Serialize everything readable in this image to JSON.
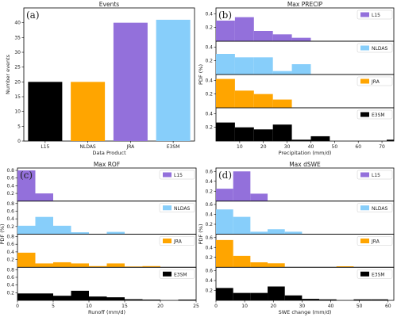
{
  "figure": {
    "name": "events-and-max-distributions"
  },
  "chart_data": [
    {
      "panel": "a",
      "type": "bar",
      "title": "Events",
      "xlabel": "Data Product",
      "ylabel": "Number events",
      "categories": [
        "L15",
        "NLDAS",
        "JRA",
        "E3SM"
      ],
      "values": [
        20,
        20,
        40,
        41
      ],
      "colors": [
        "#000000",
        "#ffa500",
        "#9370db",
        "#87cefa"
      ],
      "ylim": [
        0,
        45
      ],
      "yticks": [
        0,
        5,
        10,
        15,
        20,
        25,
        30,
        35,
        40
      ],
      "grid": false
    },
    {
      "panel": "b",
      "type": "bar",
      "title": "Max PRECIP",
      "xlabel": "Precipitation (mm/d)",
      "ylabel": "PDF (%)",
      "xlim": [
        0,
        75
      ],
      "xticks": [
        10,
        20,
        30,
        40,
        50,
        60,
        70
      ],
      "ylim": [
        0,
        0.45
      ],
      "yticks": [
        0.2,
        0.4
      ],
      "series": [
        {
          "name": "L15",
          "color": "#9370db",
          "bin_edges": [
            0,
            8,
            16,
            24,
            32,
            40
          ],
          "values": [
            0.3,
            0.35,
            0.15,
            0.1,
            0.05
          ]
        },
        {
          "name": "NLDAS",
          "color": "#87cefa",
          "bin_edges": [
            0,
            8,
            16,
            24,
            32,
            40
          ],
          "values": [
            0.3,
            0.25,
            0.25,
            0.05,
            0.15
          ]
        },
        {
          "name": "JRA",
          "color": "#ffa500",
          "bin_edges": [
            0,
            8,
            16,
            24,
            32
          ],
          "values": [
            0.42,
            0.25,
            0.2,
            0.12
          ]
        },
        {
          "name": "E3SM",
          "color": "#000000",
          "bin_edges": [
            0,
            8,
            16,
            24,
            32,
            40,
            48,
            56,
            64,
            72,
            80
          ],
          "values": [
            0.27,
            0.2,
            0.17,
            0.24,
            0.02,
            0.07,
            0.0,
            0.0,
            0.0,
            0.02
          ]
        }
      ]
    },
    {
      "panel": "c",
      "type": "bar",
      "title": "Max ROF",
      "xlabel": "Runoff (mm/d)",
      "ylabel": "PDF (%)",
      "xlim": [
        0,
        25
      ],
      "xticks": [
        0,
        5,
        10,
        15,
        20,
        25
      ],
      "ylim": [
        0,
        0.8
      ],
      "yticks": [
        0.2,
        0.4,
        0.6,
        0.8
      ],
      "series": [
        {
          "name": "L15",
          "color": "#9370db",
          "bin_edges": [
            0,
            2.5,
            5
          ],
          "values": [
            0.8,
            0.2
          ]
        },
        {
          "name": "NLDAS",
          "color": "#87cefa",
          "bin_edges": [
            0,
            2.5,
            5,
            7.5,
            10,
            12.5,
            15
          ],
          "values": [
            0.22,
            0.45,
            0.22,
            0.05,
            0.0,
            0.06
          ]
        },
        {
          "name": "JRA",
          "color": "#ffa500",
          "bin_edges": [
            0,
            2.5,
            5,
            7.5,
            10,
            12.5,
            15,
            17.5,
            20
          ],
          "values": [
            0.38,
            0.1,
            0.13,
            0.1,
            0.03,
            0.1,
            0.02,
            0.03
          ]
        },
        {
          "name": "E3SM",
          "color": "#000000",
          "bin_edges": [
            0,
            2.5,
            5,
            7.5,
            10,
            12.5,
            15,
            17.5,
            20,
            22.5,
            25
          ],
          "values": [
            0.18,
            0.18,
            0.12,
            0.25,
            0.1,
            0.08,
            0.03,
            0.02,
            0.0,
            0.02
          ]
        }
      ]
    },
    {
      "panel": "d",
      "type": "bar",
      "title": "Max dSWE",
      "xlabel": "SWE change (mm/d)",
      "ylabel": "PDF (%)",
      "xlim": [
        0,
        62
      ],
      "xticks": [
        0,
        10,
        20,
        30,
        40,
        50,
        60
      ],
      "ylim": [
        0,
        0.62
      ],
      "yticks": [
        0.2,
        0.4,
        0.6
      ],
      "series": [
        {
          "name": "L15",
          "color": "#9370db",
          "bin_edges": [
            0,
            6,
            12,
            18
          ],
          "values": [
            0.25,
            0.6,
            0.15
          ]
        },
        {
          "name": "NLDAS",
          "color": "#87cefa",
          "bin_edges": [
            0,
            6,
            12,
            18,
            24,
            30
          ],
          "values": [
            0.5,
            0.35,
            0.05,
            0.1,
            0.05
          ]
        },
        {
          "name": "JRA",
          "color": "#ffa500",
          "bin_edges": [
            0,
            6,
            12,
            18,
            24,
            30,
            36,
            42,
            48
          ],
          "values": [
            0.55,
            0.23,
            0.1,
            0.08,
            0.0,
            0.0,
            0.0,
            0.02
          ]
        },
        {
          "name": "E3SM",
          "color": "#000000",
          "bin_edges": [
            0,
            6,
            12,
            18,
            24,
            30,
            36,
            42,
            48,
            54,
            60
          ],
          "values": [
            0.25,
            0.15,
            0.15,
            0.28,
            0.1,
            0.03,
            0.02,
            0.0,
            0.02,
            0.02
          ]
        }
      ]
    }
  ]
}
